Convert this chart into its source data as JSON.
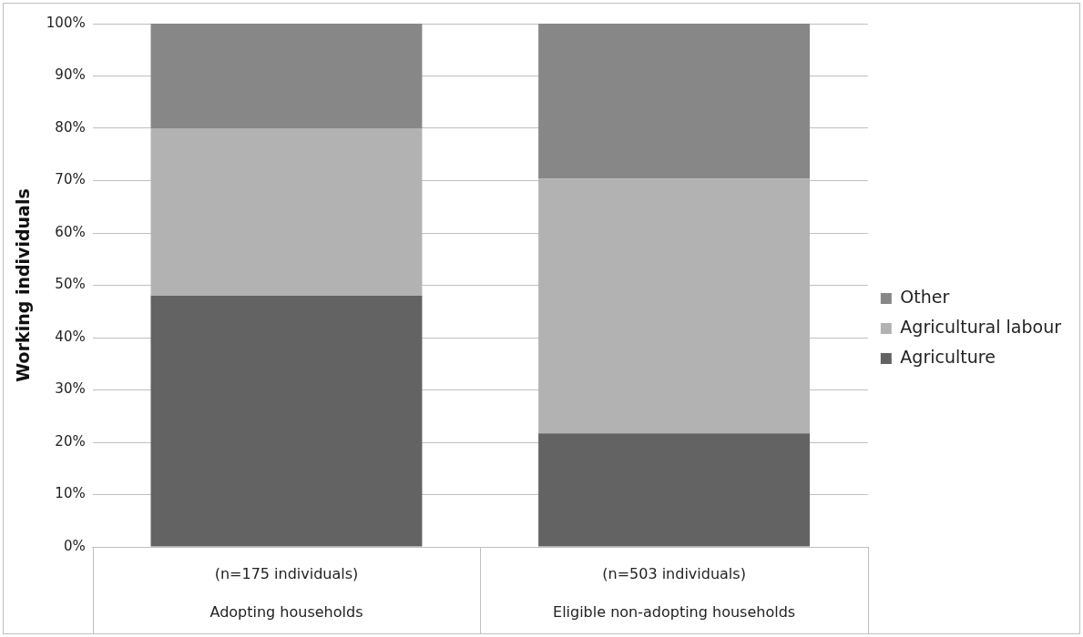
{
  "chart_data": {
    "type": "bar",
    "stacked": true,
    "ylabel": "Working individuals",
    "categories": [
      "(n=175 individuals)\nAdopting households",
      "(n=503 individuals)\nEligible non-adopting households"
    ],
    "series": [
      {
        "name": "Agriculture",
        "color": "#636363",
        "values": [
          48,
          21.7
        ]
      },
      {
        "name": "Agricultural labour",
        "color": "#b2b2b2",
        "values": [
          32,
          48.7
        ]
      },
      {
        "name": "Other",
        "color": "#878787",
        "values": [
          20,
          29.6
        ]
      }
    ],
    "ylim": [
      0,
      100
    ],
    "yticks": [
      {
        "value": 0,
        "label": "0%"
      },
      {
        "value": 10,
        "label": "10%"
      },
      {
        "value": 20,
        "label": "20%"
      },
      {
        "value": 30,
        "label": "30%"
      },
      {
        "value": 40,
        "label": "40%"
      },
      {
        "value": 50,
        "label": "50%"
      },
      {
        "value": 60,
        "label": "60%"
      },
      {
        "value": 70,
        "label": "70%"
      },
      {
        "value": 80,
        "label": "80%"
      },
      {
        "value": 90,
        "label": "90%"
      },
      {
        "value": 100,
        "label": "100%"
      }
    ],
    "grid": "y",
    "legend": "right"
  }
}
